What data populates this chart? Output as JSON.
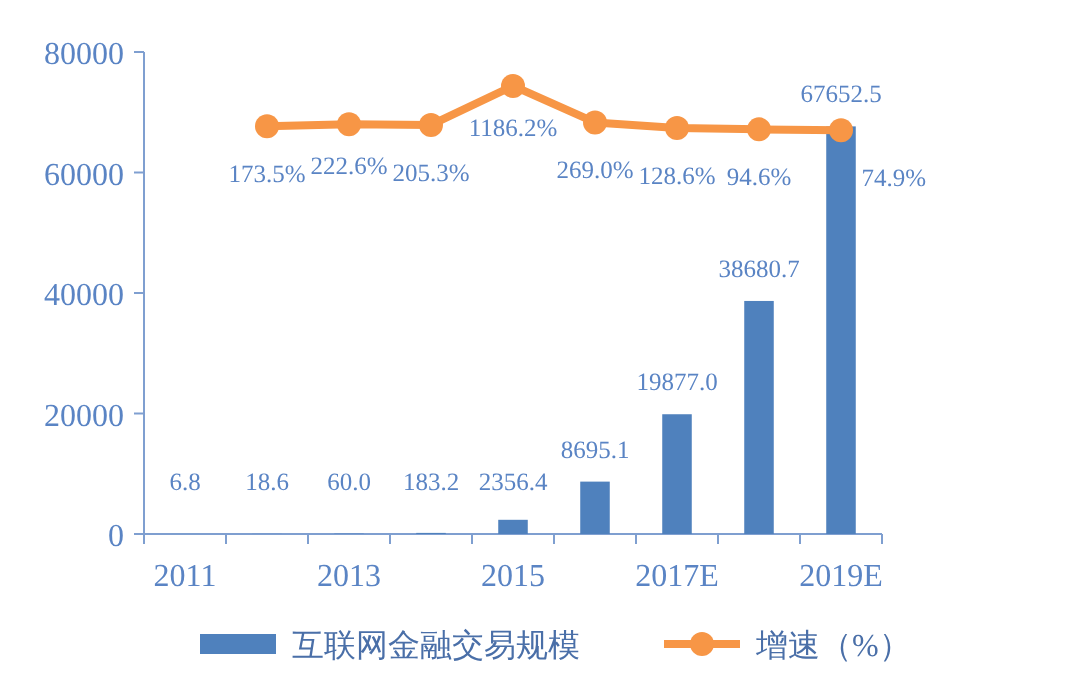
{
  "chart_data": {
    "type": "bar",
    "categories": [
      "2011",
      null,
      "2013",
      null,
      "2015",
      null,
      "2017E",
      null,
      "2019E"
    ],
    "series": [
      {
        "name": "互联网金融交易规模",
        "color": "#4f81bd",
        "values": [
          6.8,
          18.6,
          60.0,
          183.2,
          2356.4,
          8695.1,
          19877.0,
          38680.7,
          67652.5
        ],
        "value_labels": [
          "6.8",
          "18.6",
          "60.0",
          "183.2",
          "2356.4",
          "8695.1",
          "19877.0",
          "38680.7",
          "67652.5"
        ]
      },
      {
        "name": "增速（%）",
        "type": "line",
        "axis": "y2",
        "color": "#f79646",
        "marker": "circle",
        "values": [
          null,
          173.5,
          222.6,
          205.3,
          1186.2,
          269.0,
          128.6,
          94.6,
          74.9
        ],
        "value_labels": [
          null,
          "173.5%",
          "222.6%",
          "205.3%",
          "1186.2%",
          "269.0%",
          "128.6%",
          "94.6%",
          "74.9%"
        ]
      }
    ],
    "ylim": [
      0,
      80000
    ],
    "yticks": [
      0,
      20000,
      40000,
      60000,
      80000
    ],
    "y2lim": [
      -10080,
      2040
    ],
    "legend": "bottom",
    "grid": false
  }
}
